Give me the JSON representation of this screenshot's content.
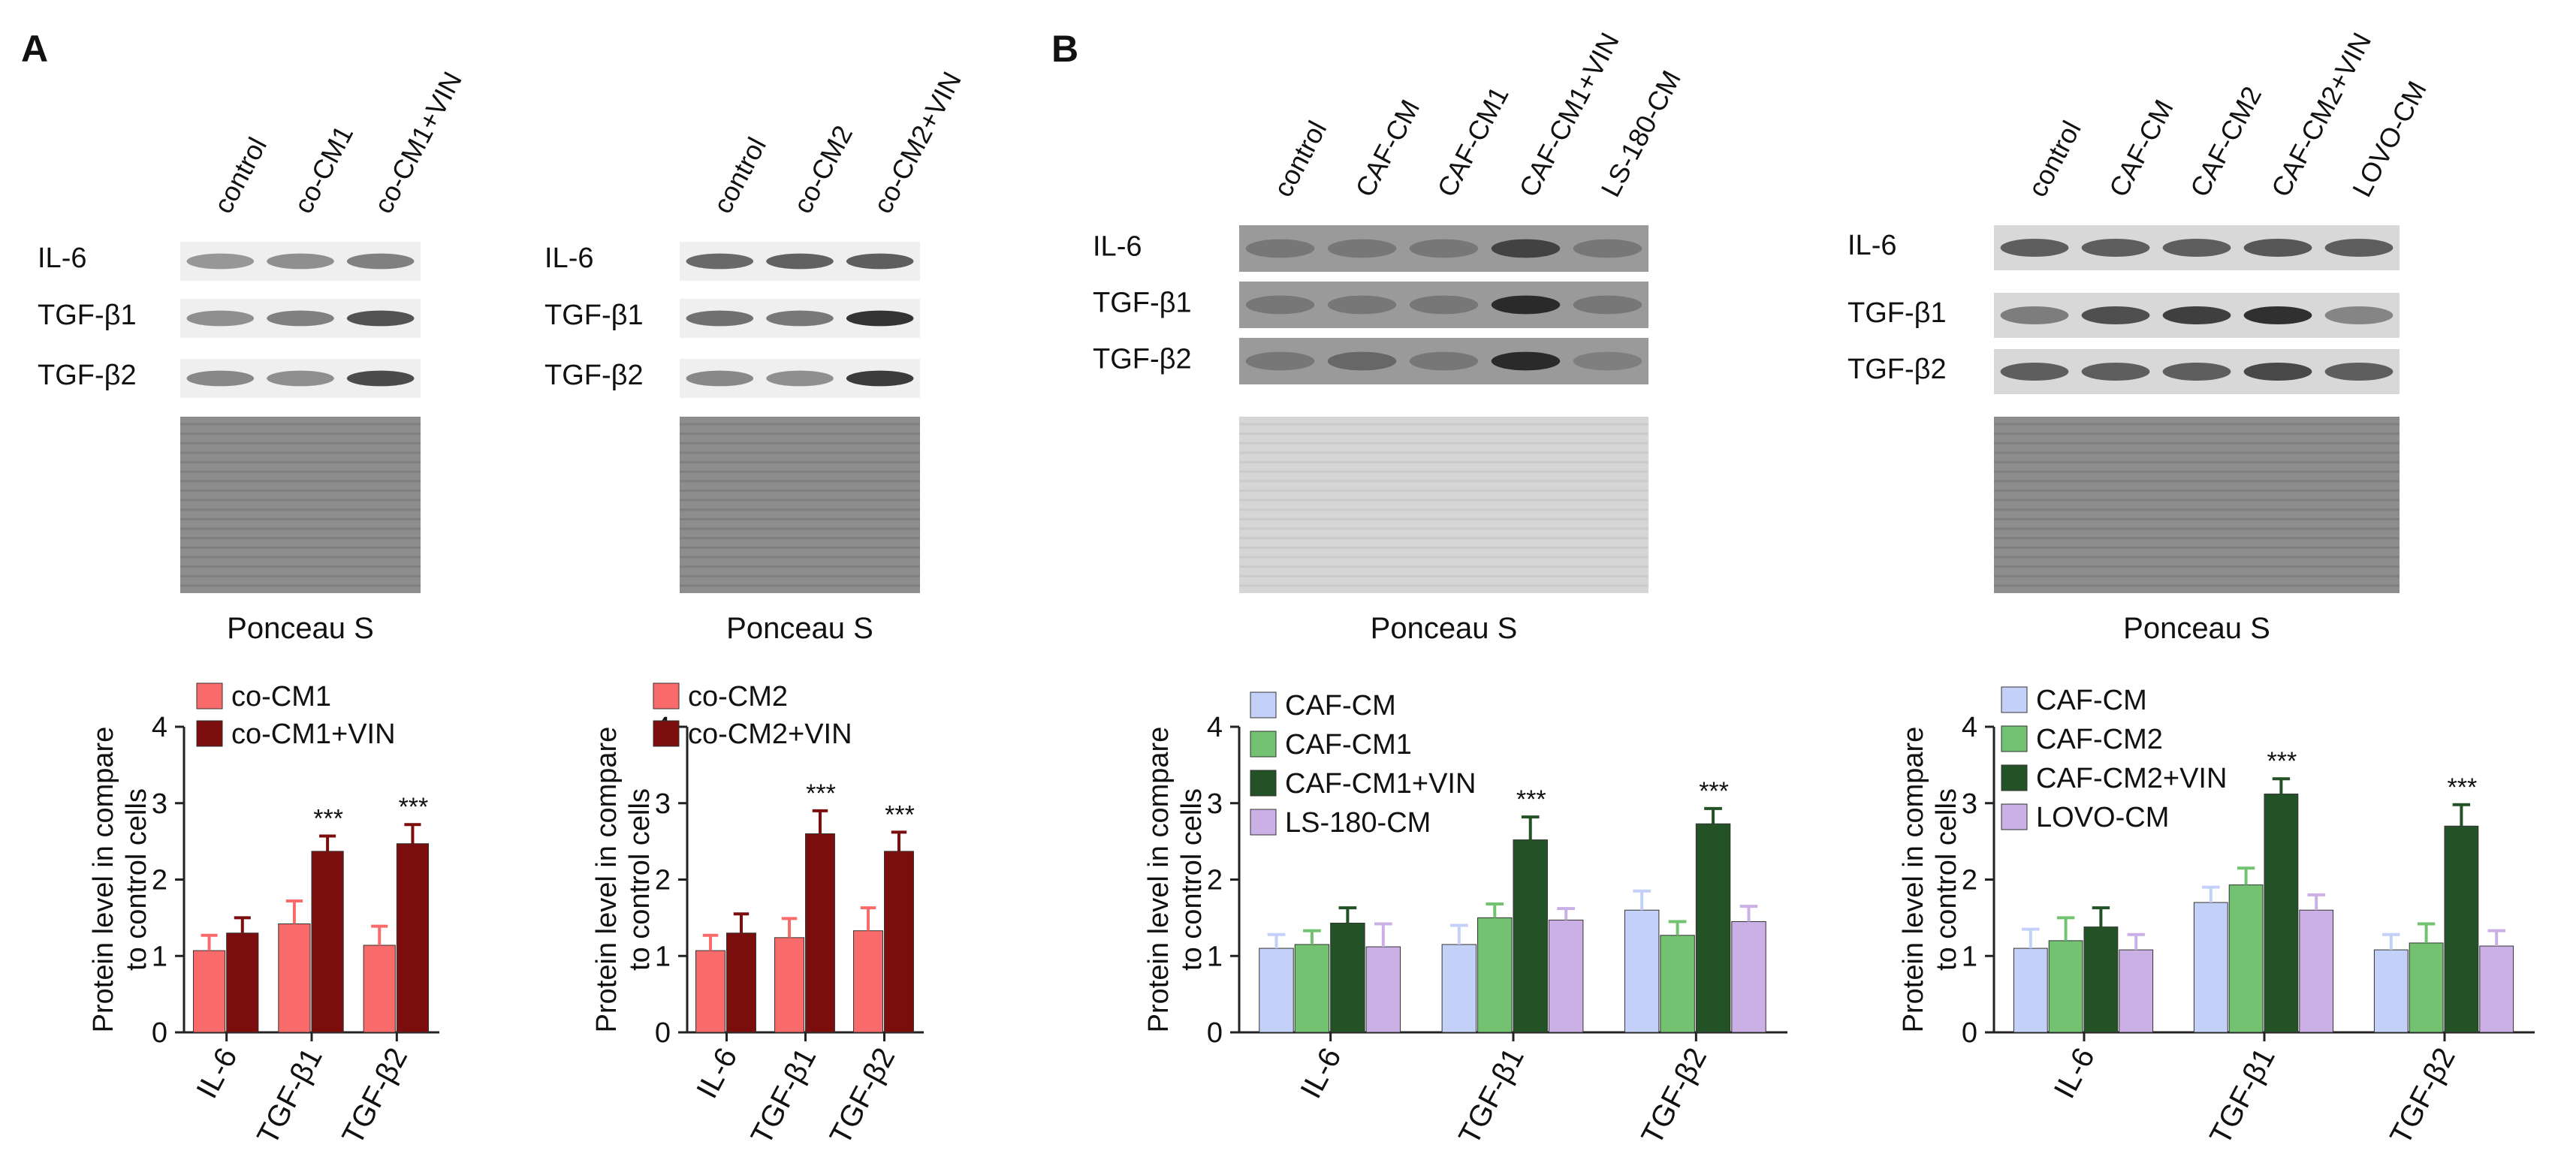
{
  "panels": [
    {
      "letter": "A",
      "blots": [
        {
          "lanes": [
            "control",
            "co-CM1",
            "co-CM1+VIN"
          ],
          "rows": [
            "IL-6",
            "TGF-β1",
            "TGF-β2"
          ],
          "intensity": [
            [
              0.35,
              0.4,
              0.5
            ],
            [
              0.4,
              0.5,
              0.8
            ],
            [
              0.45,
              0.4,
              0.85
            ]
          ],
          "tone": "light",
          "stain": "Ponceau S"
        },
        {
          "lanes": [
            "control",
            "co-CM2",
            "co-CM2+VIN"
          ],
          "rows": [
            "IL-6",
            "TGF-β1",
            "TGF-β2"
          ],
          "intensity": [
            [
              0.65,
              0.7,
              0.72
            ],
            [
              0.6,
              0.55,
              1.0
            ],
            [
              0.45,
              0.4,
              0.95
            ]
          ],
          "tone": "light",
          "stain": "Ponceau S"
        }
      ],
      "charts": [
        {
          "type": "bar",
          "categories": [
            "IL-6",
            "TGF-β1",
            "TGF-β2"
          ],
          "series": [
            {
              "name": "co-CM1",
              "color": "#f96b6b",
              "values": [
                1.07,
                1.42,
                1.14
              ],
              "errors": [
                0.2,
                0.3,
                0.25
              ]
            },
            {
              "name": "co-CM1+VIN",
              "color": "#7b0d0d",
              "values": [
                1.3,
                2.37,
                2.47
              ],
              "errors": [
                0.2,
                0.2,
                0.25
              ]
            }
          ],
          "significance": [
            "",
            "***",
            "***"
          ],
          "ylabel": [
            "Protein level in compare",
            "to control cells"
          ],
          "ylim": [
            0,
            4
          ],
          "yticks": [
            0,
            1,
            2,
            3,
            4
          ],
          "legend": "top-left"
        },
        {
          "type": "bar",
          "categories": [
            "IL-6",
            "TGF-β1",
            "TGF-β2"
          ],
          "series": [
            {
              "name": "co-CM2",
              "color": "#f96b6b",
              "values": [
                1.07,
                1.24,
                1.33
              ],
              "errors": [
                0.2,
                0.25,
                0.3
              ]
            },
            {
              "name": "co-CM2+VIN",
              "color": "#7b0d0d",
              "values": [
                1.3,
                2.6,
                2.37
              ],
              "errors": [
                0.25,
                0.3,
                0.25
              ]
            }
          ],
          "significance": [
            "",
            "***",
            "***"
          ],
          "ylabel": [
            "Protein level in compare",
            "to control cells"
          ],
          "ylim": [
            0,
            4
          ],
          "yticks": [
            0,
            1,
            2,
            3,
            4
          ],
          "legend": "top-left"
        }
      ]
    },
    {
      "letter": "B",
      "blots": [
        {
          "lanes": [
            "control",
            "CAF-CM",
            "CAF-CM1",
            "CAF-CM1+VIN",
            "LS-180-CM"
          ],
          "rows": [
            "IL-6",
            "TGF-β1",
            "TGF-β2"
          ],
          "intensity": [
            [
              0.5,
              0.5,
              0.5,
              0.85,
              0.5
            ],
            [
              0.5,
              0.5,
              0.5,
              1.0,
              0.5
            ],
            [
              0.5,
              0.6,
              0.5,
              1.0,
              0.45
            ]
          ],
          "tone": "dark",
          "stain": "Ponceau S"
        },
        {
          "lanes": [
            "control",
            "CAF-CM",
            "CAF-CM2",
            "CAF-CM2+VIN",
            "LOVO-CM"
          ],
          "rows": [
            "IL-6",
            "TGF-β1",
            "TGF-β2"
          ],
          "intensity": [
            [
              0.7,
              0.7,
              0.7,
              0.75,
              0.7
            ],
            [
              0.5,
              0.8,
              0.9,
              1.0,
              0.45
            ],
            [
              0.7,
              0.7,
              0.7,
              0.85,
              0.7
            ]
          ],
          "tone": "medium",
          "stain": "Ponceau S"
        }
      ],
      "charts": [
        {
          "type": "bar",
          "categories": [
            "IL-6",
            "TGF-β1",
            "TGF-β2"
          ],
          "series": [
            {
              "name": "CAF-CM",
              "color": "#c3d0f7",
              "values": [
                1.1,
                1.15,
                1.6
              ],
              "errors": [
                0.18,
                0.25,
                0.25
              ]
            },
            {
              "name": "CAF-CM1",
              "color": "#72c272",
              "values": [
                1.15,
                1.5,
                1.27
              ],
              "errors": [
                0.18,
                0.18,
                0.18
              ]
            },
            {
              "name": "CAF-CM1+VIN",
              "color": "#225225",
              "values": [
                1.43,
                2.52,
                2.73
              ],
              "errors": [
                0.2,
                0.3,
                0.2
              ]
            },
            {
              "name": "LS-180-CM",
              "color": "#cbb0e5",
              "values": [
                1.12,
                1.47,
                1.45
              ],
              "errors": [
                0.3,
                0.15,
                0.2
              ]
            }
          ],
          "significance": [
            "",
            "***",
            "***"
          ],
          "ylabel": [
            "Protein level in compare",
            "to control cells"
          ],
          "ylim": [
            0,
            4
          ],
          "yticks": [
            0,
            1,
            2,
            3,
            4
          ],
          "legend": "top-left"
        },
        {
          "type": "bar",
          "categories": [
            "IL-6",
            "TGF-β1",
            "TGF-β2"
          ],
          "series": [
            {
              "name": "CAF-CM",
              "color": "#c3d0f7",
              "values": [
                1.1,
                1.7,
                1.08
              ],
              "errors": [
                0.25,
                0.2,
                0.2
              ]
            },
            {
              "name": "CAF-CM2",
              "color": "#72c272",
              "values": [
                1.2,
                1.93,
                1.17
              ],
              "errors": [
                0.3,
                0.22,
                0.25
              ]
            },
            {
              "name": "CAF-CM2+VIN",
              "color": "#225225",
              "values": [
                1.38,
                3.12,
                2.7
              ],
              "errors": [
                0.25,
                0.2,
                0.28
              ]
            },
            {
              "name": "LOVO-CM",
              "color": "#cbb0e5",
              "values": [
                1.08,
                1.6,
                1.13
              ],
              "errors": [
                0.2,
                0.2,
                0.2
              ]
            }
          ],
          "significance": [
            "",
            "***",
            "***"
          ],
          "ylabel": [
            "Protein level in compare",
            "to control cells"
          ],
          "ylim": [
            0,
            4
          ],
          "yticks": [
            0,
            1,
            2,
            3,
            4
          ],
          "legend": "top-left"
        }
      ]
    }
  ]
}
